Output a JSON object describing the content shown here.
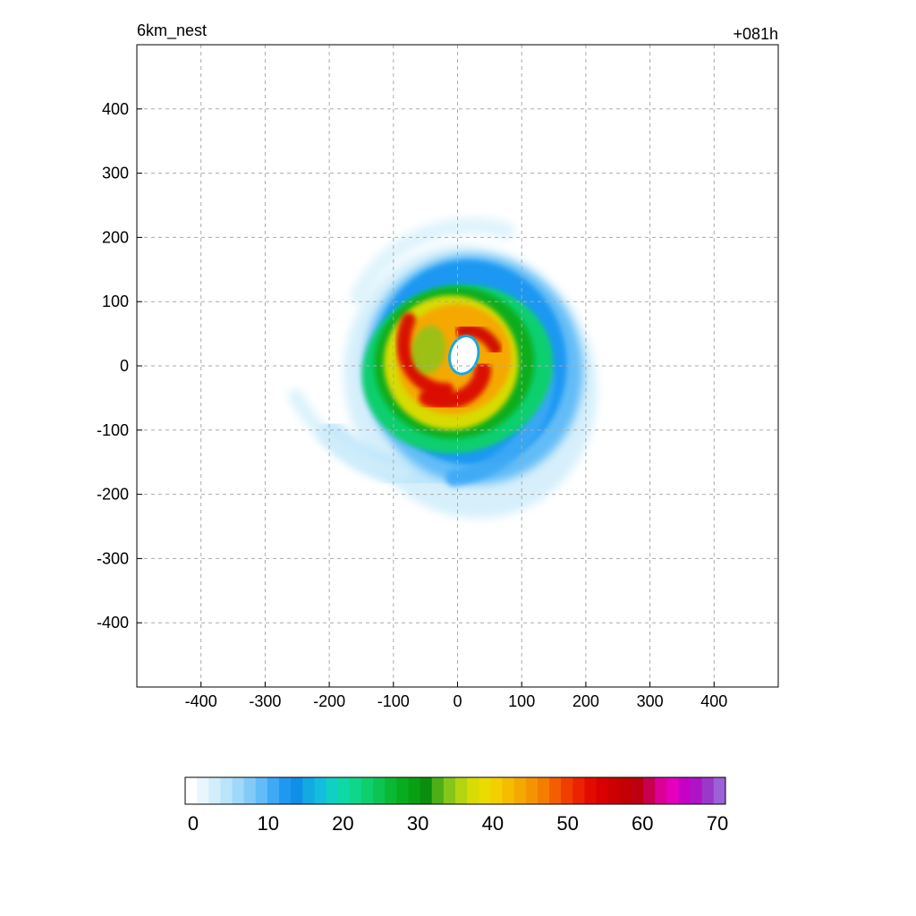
{
  "chart_data": {
    "type": "heatmap",
    "title_left": "6km_nest",
    "title_right": "+081h",
    "xlabel": "",
    "ylabel": "",
    "xlim": [
      -500,
      500
    ],
    "ylim": [
      -500,
      500
    ],
    "x_ticks": [
      -400,
      -300,
      -200,
      -100,
      0,
      100,
      200,
      300,
      400
    ],
    "y_ticks": [
      400,
      300,
      200,
      100,
      0,
      -100,
      -200,
      -300,
      -400
    ],
    "grid": true,
    "colorbar": {
      "range": [
        0,
        70
      ],
      "tick_labels": [
        "0",
        "10",
        "20",
        "30",
        "40",
        "50",
        "60",
        "70"
      ],
      "tick_values": [
        0,
        10,
        20,
        30,
        40,
        50,
        60,
        70
      ],
      "colors": [
        "#ffffff",
        "#e9f6fd",
        "#d2eefb",
        "#b9e4fa",
        "#9fd8f9",
        "#82cbf8",
        "#62bcf7",
        "#3ea9f5",
        "#1f98f2",
        "#0f8fe8",
        "#13a9e3",
        "#14bddd",
        "#10cfc4",
        "#0ed9a6",
        "#10d68a",
        "#0ecf6e",
        "#0cc452",
        "#09b935",
        "#07ad1f",
        "#089f12",
        "#0b8d0d",
        "#4caf17",
        "#86c61a",
        "#b4d410",
        "#d8db06",
        "#eadb00",
        "#f3cf00",
        "#f5bc00",
        "#f5a800",
        "#f59400",
        "#f47d00",
        "#f35e00",
        "#f03e00",
        "#ec2200",
        "#e30b00",
        "#d80000",
        "#cc0000",
        "#c30003",
        "#bc0010",
        "#c8004d",
        "#db0095",
        "#e400bd",
        "#c700c5",
        "#ae14c6",
        "#9c38c9",
        "#9d60d7"
      ]
    },
    "features": {
      "eye_center": [
        0,
        15
      ],
      "eye_radius_km": 20,
      "band_color_levels": [
        4,
        10,
        20,
        28,
        35,
        46
      ]
    }
  }
}
